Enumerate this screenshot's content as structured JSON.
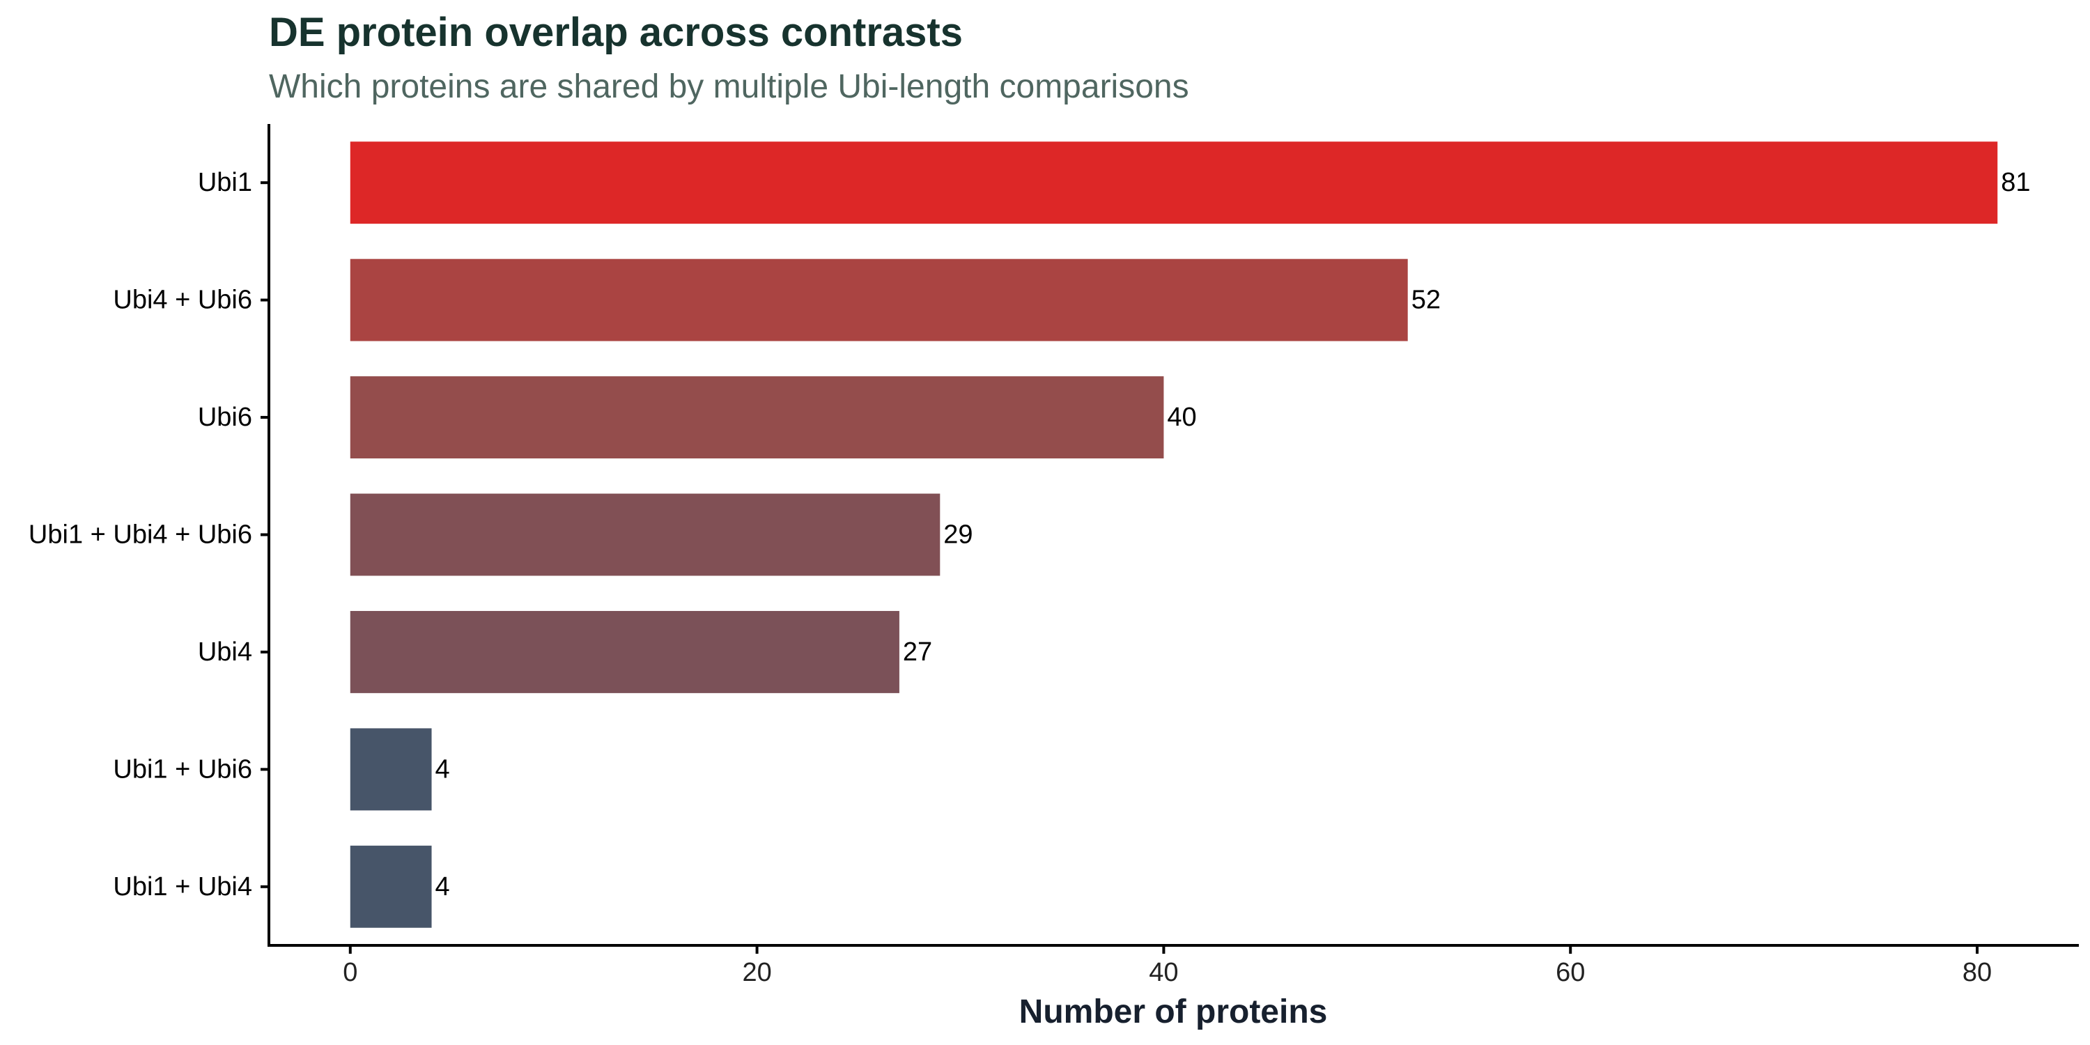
{
  "title": "DE protein overlap across contrasts",
  "subtitle": "Which proteins are shared by multiple Ubi-length comparisons",
  "chart_data": {
    "type": "bar",
    "orientation": "horizontal",
    "title": "DE protein overlap across contrasts",
    "subtitle": "Which proteins are shared by multiple Ubi-length comparisons",
    "xlabel": "Number of proteins",
    "ylabel": "",
    "categories": [
      "Ubi1",
      "Ubi4 + Ubi6",
      "Ubi6",
      "Ubi1 + Ubi4 + Ubi6",
      "Ubi4",
      "Ubi1 + Ubi6",
      "Ubi1 + Ubi4"
    ],
    "values": [
      81,
      52,
      40,
      29,
      27,
      4,
      4
    ],
    "colors": [
      "#dd2727",
      "#aa4442",
      "#944d4c",
      "#815055",
      "#7b5158",
      "#475569",
      "#475569"
    ],
    "xlim": [
      -4,
      85
    ],
    "xticks": [
      0,
      20,
      40,
      60,
      80
    ],
    "data_labels": [
      "81",
      "52",
      "40",
      "29",
      "27",
      "4",
      "4"
    ],
    "grid": false,
    "legend": "none"
  }
}
